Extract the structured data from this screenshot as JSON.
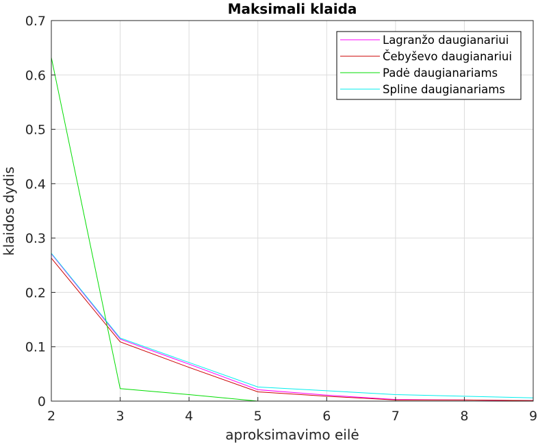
{
  "chart_data": {
    "type": "line",
    "title": "Maksimali klaida",
    "xlabel": "aproksimavimo eilė",
    "ylabel": "klaidos dydis",
    "xlim": [
      2,
      9
    ],
    "ylim": [
      0,
      0.7
    ],
    "xticks": [
      "2",
      "3",
      "4",
      "5",
      "6",
      "7",
      "8",
      "9"
    ],
    "yticks": [
      "0",
      "0.1",
      "0.2",
      "0.3",
      "0.4",
      "0.5",
      "0.6",
      "0.7"
    ],
    "grid": true,
    "legend_position": "top-right",
    "x": [
      2,
      3,
      4,
      5,
      6,
      7,
      8,
      9
    ],
    "series": [
      {
        "name": "Lagranžo daugianariui",
        "color": "#ff00ff",
        "values": [
          0.271,
          0.114,
          0.068,
          0.021,
          0.011,
          0.003,
          0.002,
          0.001
        ]
      },
      {
        "name": "Čebyševo daugianariui",
        "color": "#cc0000",
        "values": [
          0.263,
          0.109,
          0.062,
          0.017,
          0.009,
          0.002,
          0.002,
          0.001
        ]
      },
      {
        "name": "Padė daugianariams",
        "color": "#00dd00",
        "values": [
          0.632,
          0.023,
          0.012,
          0.0,
          0.0,
          0.0,
          0.0,
          0.0
        ]
      },
      {
        "name": "Spline daugianariams",
        "color": "#00eeee",
        "values": [
          0.272,
          0.116,
          0.071,
          0.026,
          0.019,
          0.012,
          0.009,
          0.006
        ]
      }
    ]
  }
}
